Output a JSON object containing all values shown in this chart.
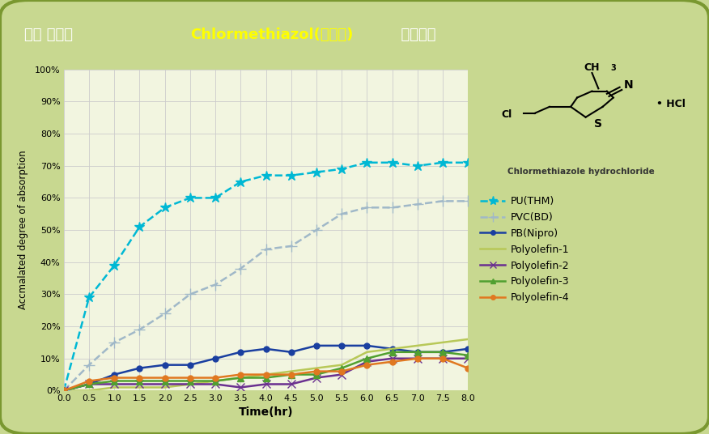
{
  "title_part1": "튜브 재질별  ",
  "title_part2": "Chlormethiazol(진정제)",
  "title_part3": "  흡착거동",
  "xlabel": "Time(hr)",
  "ylabel": "Accmalated degree of absorption",
  "bg_outer": "#c8d890",
  "bg_inner": "#f2f5e0",
  "title_bg_dark": "#6b9020",
  "title_bg_light": "#a0c840",
  "title_color_white": "#ffffff",
  "title_color_yellow": "#ffff00",
  "chem_bg": "#f5e8c8",
  "xlim": [
    0.0,
    8.0
  ],
  "ylim": [
    0,
    100
  ],
  "xticks": [
    0.0,
    0.5,
    1.0,
    1.5,
    2.0,
    2.5,
    3.0,
    3.5,
    4.0,
    4.5,
    5.0,
    5.5,
    6.0,
    6.5,
    7.0,
    7.5,
    8.0
  ],
  "ytick_labels": [
    "0%",
    "10%",
    "20%",
    "30%",
    "40%",
    "50%",
    "60%",
    "70%",
    "80%",
    "90%",
    "100%"
  ],
  "ytick_values": [
    0,
    10,
    20,
    30,
    40,
    50,
    60,
    70,
    80,
    90,
    100
  ],
  "series": [
    {
      "name": "PU(THM)",
      "color": "#00b8d4",
      "linestyle": "--",
      "marker": "*",
      "markersize": 9,
      "x": [
        0.0,
        0.5,
        1.0,
        1.5,
        2.0,
        2.5,
        3.0,
        3.5,
        4.0,
        4.5,
        5.0,
        5.5,
        6.0,
        6.5,
        7.0,
        7.5,
        8.0
      ],
      "y": [
        0,
        29,
        39,
        51,
        57,
        60,
        60,
        65,
        67,
        67,
        68,
        69,
        71,
        71,
        70,
        71,
        71
      ]
    },
    {
      "name": "PVC(BD)",
      "color": "#a0b8c8",
      "linestyle": "--",
      "marker": "+",
      "markersize": 10,
      "x": [
        0.0,
        0.5,
        1.0,
        1.5,
        2.0,
        2.5,
        3.0,
        3.5,
        4.0,
        4.5,
        5.0,
        5.5,
        6.0,
        6.5,
        7.0,
        7.5,
        8.0
      ],
      "y": [
        0,
        8,
        15,
        19,
        24,
        30,
        33,
        38,
        44,
        45,
        50,
        55,
        57,
        57,
        58,
        59,
        59
      ]
    },
    {
      "name": "PB(Nipro)",
      "color": "#1a3fa0",
      "linestyle": "-",
      "marker": "o",
      "markersize": 5,
      "x": [
        0.0,
        0.5,
        1.0,
        1.5,
        2.0,
        2.5,
        3.0,
        3.5,
        4.0,
        4.5,
        5.0,
        5.5,
        6.0,
        6.5,
        7.0,
        7.5,
        8.0
      ],
      "y": [
        0,
        2,
        5,
        7,
        8,
        8,
        10,
        12,
        13,
        12,
        14,
        14,
        14,
        13,
        12,
        12,
        13
      ]
    },
    {
      "name": "Polyolefin-1",
      "color": "#b8c858",
      "linestyle": "-",
      "marker": null,
      "markersize": 5,
      "x": [
        0.0,
        0.5,
        1.0,
        1.5,
        2.0,
        2.5,
        3.0,
        3.5,
        4.0,
        4.5,
        5.0,
        5.5,
        6.0,
        6.5,
        7.0,
        7.5,
        8.0
      ],
      "y": [
        0,
        0,
        1,
        1,
        1,
        2,
        3,
        4,
        5,
        6,
        7,
        8,
        12,
        13,
        14,
        15,
        16
      ]
    },
    {
      "name": "Polyolefin-2",
      "color": "#6a3090",
      "linestyle": "-",
      "marker": "x",
      "markersize": 7,
      "x": [
        0.0,
        0.5,
        1.0,
        1.5,
        2.0,
        2.5,
        3.0,
        3.5,
        4.0,
        4.5,
        5.0,
        5.5,
        6.0,
        6.5,
        7.0,
        7.5,
        8.0
      ],
      "y": [
        0,
        2,
        2,
        2,
        2,
        2,
        2,
        1,
        2,
        2,
        4,
        5,
        9,
        10,
        10,
        10,
        10
      ]
    },
    {
      "name": "Polyolefin-3",
      "color": "#50a030",
      "linestyle": "-",
      "marker": "^",
      "markersize": 6,
      "x": [
        0.0,
        0.5,
        1.0,
        1.5,
        2.0,
        2.5,
        3.0,
        3.5,
        4.0,
        4.5,
        5.0,
        5.5,
        6.0,
        6.5,
        7.0,
        7.5,
        8.0
      ],
      "y": [
        0,
        2,
        3,
        3,
        3,
        3,
        3,
        4,
        4,
        5,
        5,
        7,
        10,
        12,
        12,
        12,
        11
      ]
    },
    {
      "name": "Polyolefin-4",
      "color": "#e07820",
      "linestyle": "-",
      "marker": "o",
      "markersize": 5,
      "x": [
        0.0,
        0.5,
        1.0,
        1.5,
        2.0,
        2.5,
        3.0,
        3.5,
        4.0,
        4.5,
        5.0,
        5.5,
        6.0,
        6.5,
        7.0,
        7.5,
        8.0
      ],
      "y": [
        0,
        3,
        4,
        4,
        4,
        4,
        4,
        5,
        5,
        5,
        6,
        6,
        8,
        9,
        10,
        10,
        7
      ]
    }
  ]
}
